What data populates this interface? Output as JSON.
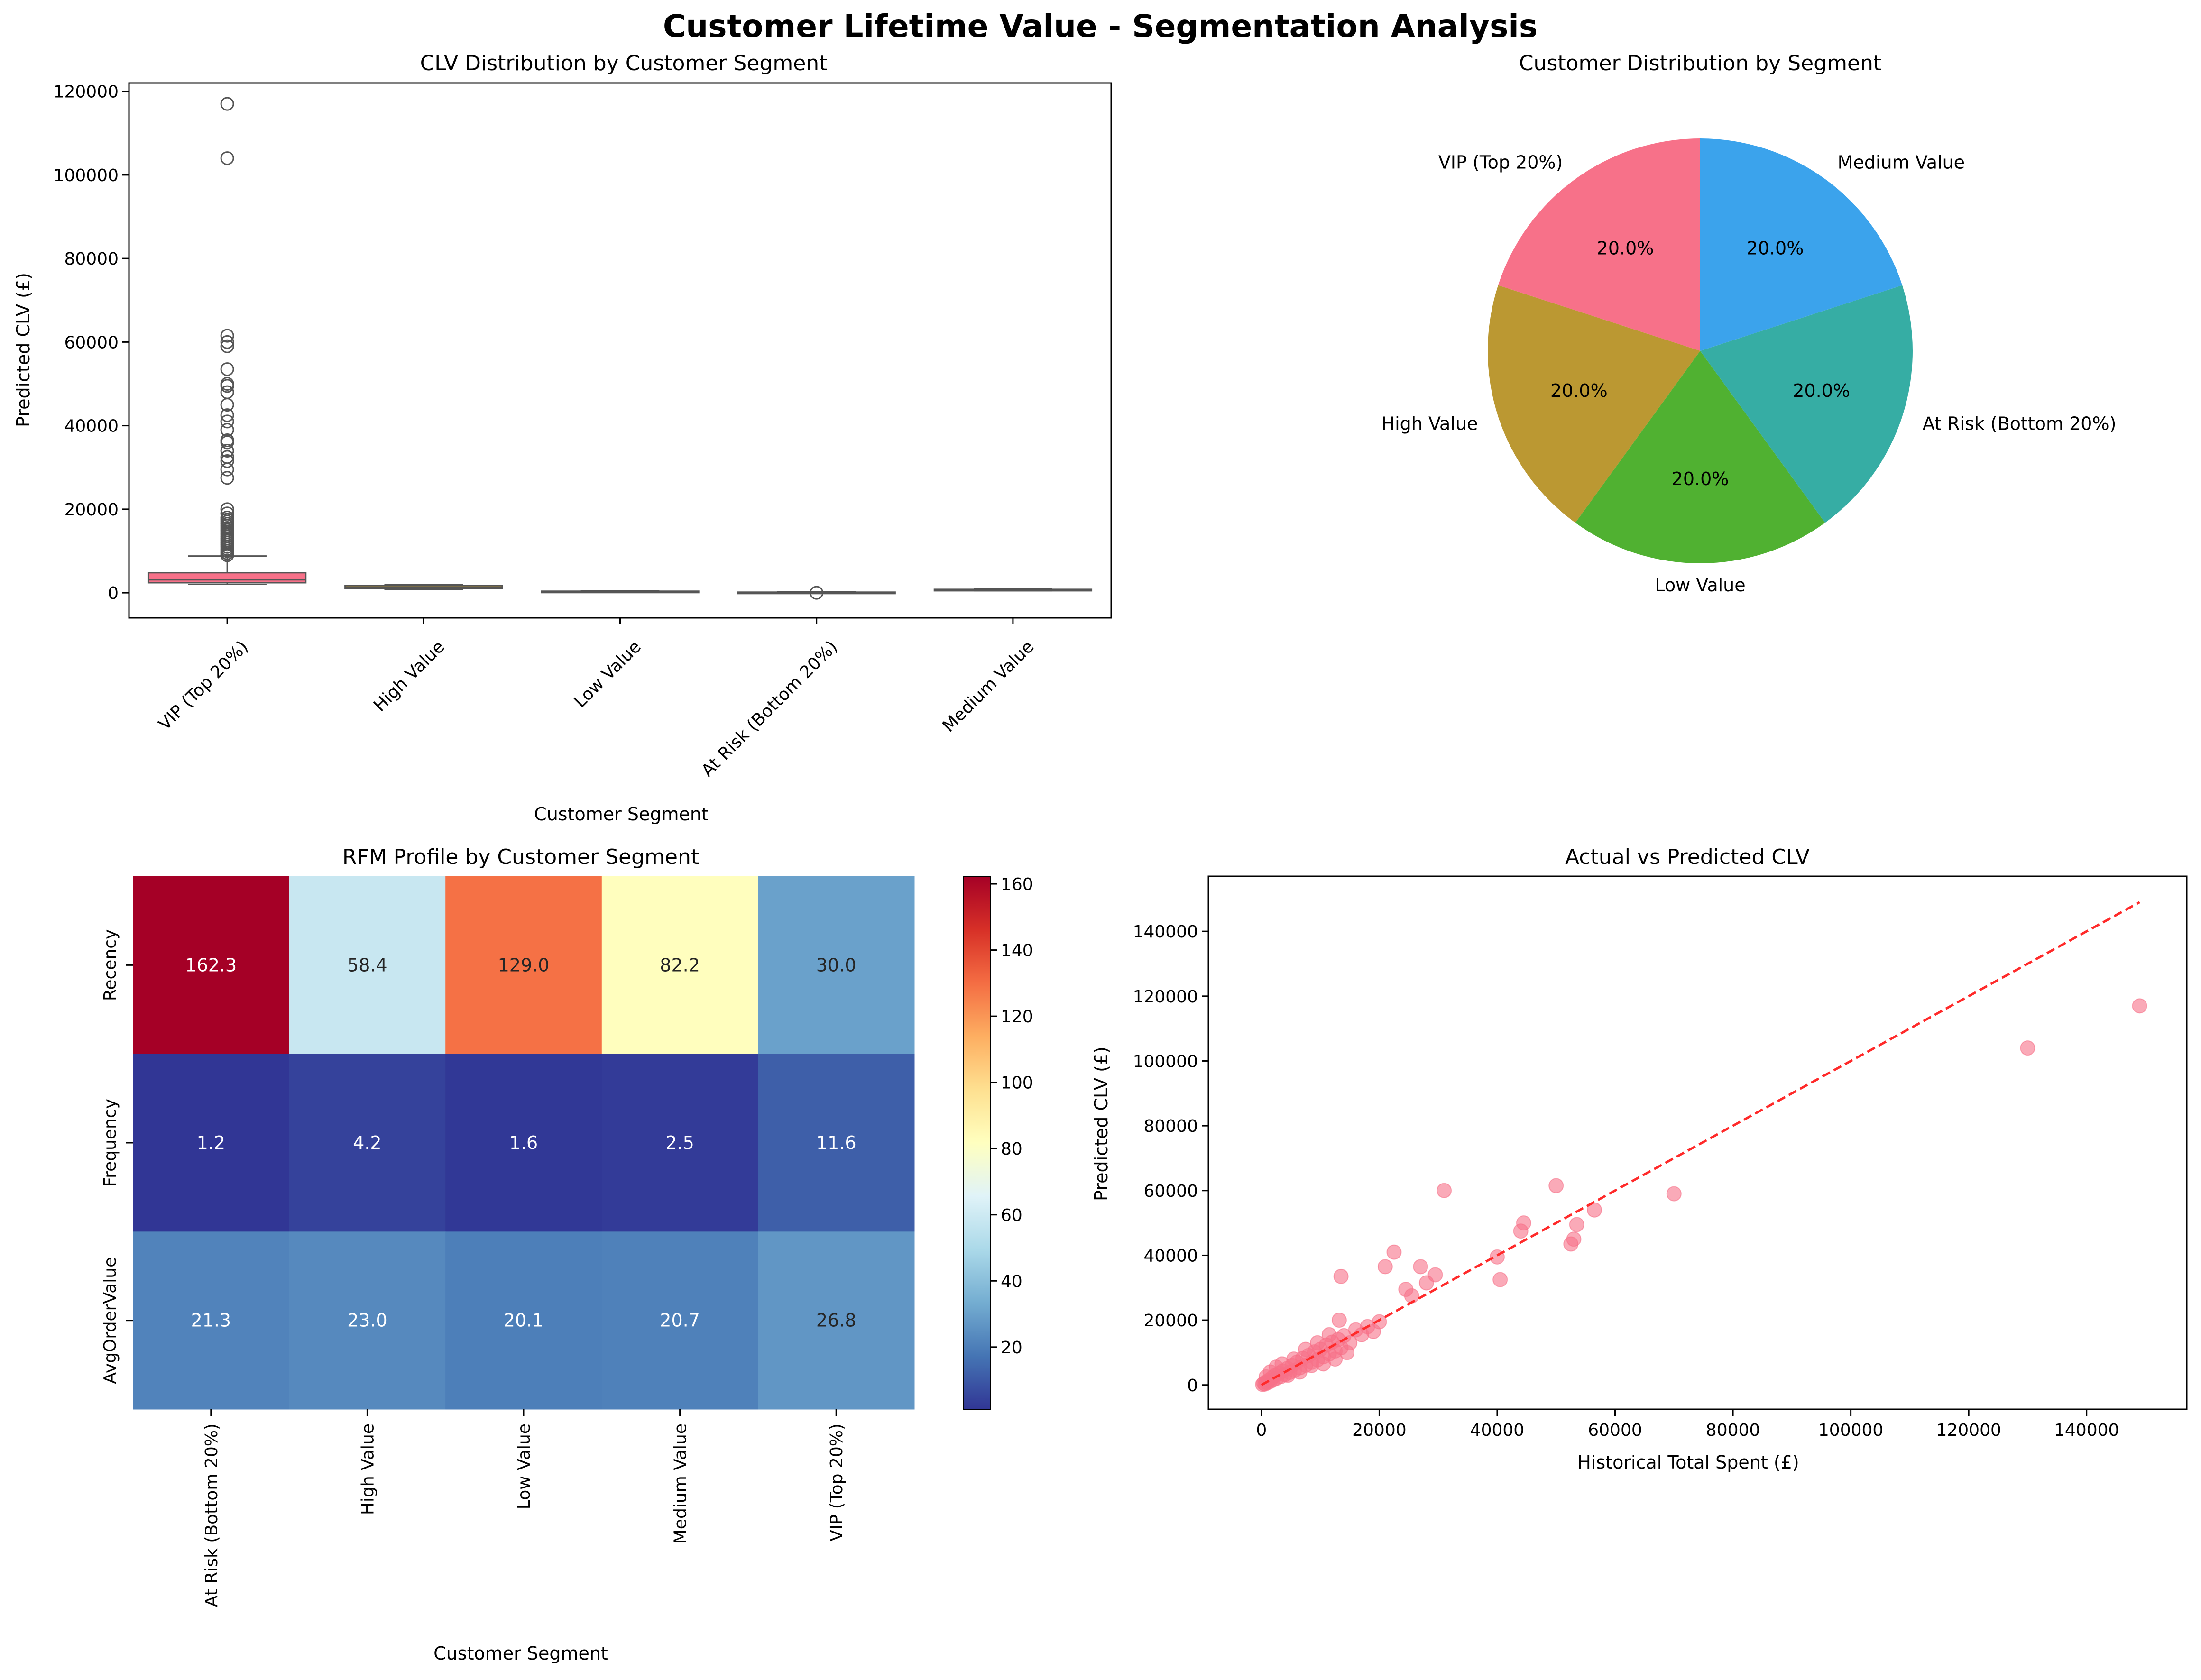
{
  "figure": {
    "title": "Customer Lifetime Value - Segmentation Analysis"
  },
  "chart_data": [
    {
      "type": "box",
      "title": "CLV Distribution by Customer Segment",
      "xlabel": "Customer Segment",
      "ylabel": "Predicted CLV (£)",
      "ylim": [
        -6000,
        122000
      ],
      "yticks": [
        0,
        20000,
        40000,
        60000,
        80000,
        100000,
        120000
      ],
      "categories": [
        "VIP (Top 20%)",
        "High Value",
        "Low Value",
        "At Risk (Bottom 20%)",
        "Medium Value"
      ],
      "boxes": [
        {
          "q1": 2400,
          "median": 3100,
          "q3": 4800,
          "whisker_low": 2000,
          "whisker_high": 8800,
          "color": "#f77189",
          "outliers": [
            9000,
            9500,
            10000,
            10500,
            11000,
            11500,
            12000,
            12500,
            13000,
            13500,
            14000,
            14500,
            15000,
            15500,
            16000,
            16500,
            17000,
            17500,
            18000,
            19000,
            20000,
            27500,
            29500,
            31500,
            32500,
            34000,
            36000,
            36500,
            39000,
            41000,
            42500,
            45000,
            48000,
            49500,
            50000,
            53500,
            59000,
            60000,
            61500,
            104000,
            117000
          ]
        },
        {
          "q1": 1000,
          "median": 1300,
          "q3": 1700,
          "whisker_low": 800,
          "whisker_high": 2000,
          "color": "#bb9832",
          "outliers": []
        },
        {
          "q1": 280,
          "median": 330,
          "q3": 380,
          "whisker_low": 150,
          "whisker_high": 500,
          "color": "#50b131",
          "outliers": []
        },
        {
          "q1": 80,
          "median": 110,
          "q3": 150,
          "whisker_low": 0,
          "whisker_high": 250,
          "color": "#36ada4",
          "outliers": [
            0
          ]
        },
        {
          "q1": 600,
          "median": 700,
          "q3": 820,
          "whisker_low": 500,
          "whisker_high": 1000,
          "color": "#3ba3ec",
          "outliers": []
        }
      ]
    },
    {
      "type": "pie",
      "title": "Customer Distribution by Segment",
      "slices": [
        {
          "label": "VIP (Top 20%)",
          "value": 20.0,
          "pct": "20.0%",
          "color": "#f77189"
        },
        {
          "label": "High Value",
          "value": 20.0,
          "pct": "20.0%",
          "color": "#bb9832"
        },
        {
          "label": "Low Value",
          "value": 20.0,
          "pct": "20.0%",
          "color": "#50b131"
        },
        {
          "label": "At Risk (Bottom 20%)",
          "value": 20.0,
          "pct": "20.0%",
          "color": "#36ada4"
        },
        {
          "label": "Medium Value",
          "value": 20.0,
          "pct": "20.0%",
          "color": "#3ba3ec"
        }
      ]
    },
    {
      "type": "heatmap",
      "title": "RFM Profile by Customer Segment",
      "xlabel": "Customer Segment",
      "ylabel": "",
      "columns": [
        "At Risk (Bottom 20%)",
        "High Value",
        "Low Value",
        "Medium Value",
        "VIP (Top 20%)"
      ],
      "rows": [
        "Recency",
        "Frequency",
        "AvgOrderValue"
      ],
      "values": [
        [
          162.3,
          58.4,
          129.0,
          82.2,
          30.0
        ],
        [
          1.2,
          4.2,
          1.6,
          2.5,
          11.6
        ],
        [
          21.3,
          23.0,
          20.1,
          20.7,
          26.8
        ]
      ],
      "cell_labels": [
        [
          "162.3",
          "58.4",
          "129.0",
          "82.2",
          "30.0"
        ],
        [
          "1.2",
          "4.2",
          "1.6",
          "2.5",
          "11.6"
        ],
        [
          "21.3",
          "23.0",
          "20.1",
          "20.7",
          "26.8"
        ]
      ],
      "vmin": 1.2,
      "vmax": 162.3,
      "colorbar_ticks": [
        20,
        40,
        60,
        80,
        100,
        120,
        140,
        160
      ],
      "colormap": "RdYlBu_r"
    },
    {
      "type": "scatter",
      "title": "Actual vs Predicted CLV",
      "xlabel": "Historical Total Spent (£)",
      "ylabel": "Predicted CLV (£)",
      "xlim": [
        -9000,
        157000
      ],
      "ylim": [
        -7500,
        157000
      ],
      "xticks": [
        0,
        20000,
        40000,
        60000,
        80000,
        100000,
        120000,
        140000
      ],
      "yticks": [
        0,
        20000,
        40000,
        60000,
        80000,
        100000,
        120000,
        140000
      ],
      "point_color": "#f77189",
      "reference_line": {
        "from": [
          0,
          0
        ],
        "to": [
          149000,
          149000
        ],
        "color": "#ff2a2a"
      },
      "points": [
        [
          200,
          150
        ],
        [
          400,
          500
        ],
        [
          600,
          300
        ],
        [
          800,
          900
        ],
        [
          1000,
          700
        ],
        [
          1200,
          1400
        ],
        [
          1500,
          1100
        ],
        [
          1800,
          2200
        ],
        [
          2000,
          1600
        ],
        [
          2300,
          2900
        ],
        [
          2600,
          2100
        ],
        [
          3000,
          3600
        ],
        [
          3300,
          2600
        ],
        [
          3600,
          4300
        ],
        [
          4000,
          3200
        ],
        [
          4400,
          5100
        ],
        [
          4800,
          3900
        ],
        [
          5200,
          6000
        ],
        [
          5600,
          4500
        ],
        [
          6000,
          7000
        ],
        [
          6500,
          5300
        ],
        [
          7000,
          8200
        ],
        [
          7500,
          6100
        ],
        [
          8000,
          9100
        ],
        [
          8500,
          7000
        ],
        [
          9000,
          10200
        ],
        [
          9500,
          7800
        ],
        [
          10000,
          11000
        ],
        [
          10500,
          8700
        ],
        [
          11000,
          12300
        ],
        [
          11500,
          9600
        ],
        [
          12000,
          13200
        ],
        [
          12500,
          10500
        ],
        [
          13000,
          14000
        ],
        [
          13500,
          11500
        ],
        [
          14000,
          15200
        ],
        [
          15000,
          13000
        ],
        [
          16000,
          17000
        ],
        [
          17000,
          15500
        ],
        [
          18000,
          18000
        ],
        [
          19000,
          16500
        ],
        [
          20000,
          19500
        ],
        [
          800,
          2500
        ],
        [
          1500,
          4000
        ],
        [
          2500,
          5500
        ],
        [
          3500,
          6500
        ],
        [
          4500,
          3000
        ],
        [
          5500,
          8000
        ],
        [
          6500,
          4000
        ],
        [
          7500,
          11000
        ],
        [
          8500,
          6000
        ],
        [
          9500,
          13000
        ],
        [
          10500,
          6500
        ],
        [
          11500,
          15500
        ],
        [
          12500,
          8000
        ],
        [
          13200,
          20000
        ],
        [
          14500,
          10000
        ],
        [
          21000,
          36500
        ],
        [
          22500,
          41000
        ],
        [
          24500,
          29500
        ],
        [
          25500,
          27500
        ],
        [
          27000,
          36500
        ],
        [
          28000,
          31500
        ],
        [
          29500,
          34000
        ],
        [
          31000,
          60000
        ],
        [
          13500,
          33500
        ],
        [
          40000,
          39500
        ],
        [
          40500,
          32500
        ],
        [
          44000,
          47500
        ],
        [
          44500,
          50000
        ],
        [
          50000,
          61500
        ],
        [
          52500,
          43500
        ],
        [
          53000,
          45000
        ],
        [
          53500,
          49500
        ],
        [
          56500,
          54000
        ],
        [
          70000,
          59000
        ],
        [
          130000,
          104000
        ],
        [
          149000,
          117000
        ]
      ]
    }
  ]
}
